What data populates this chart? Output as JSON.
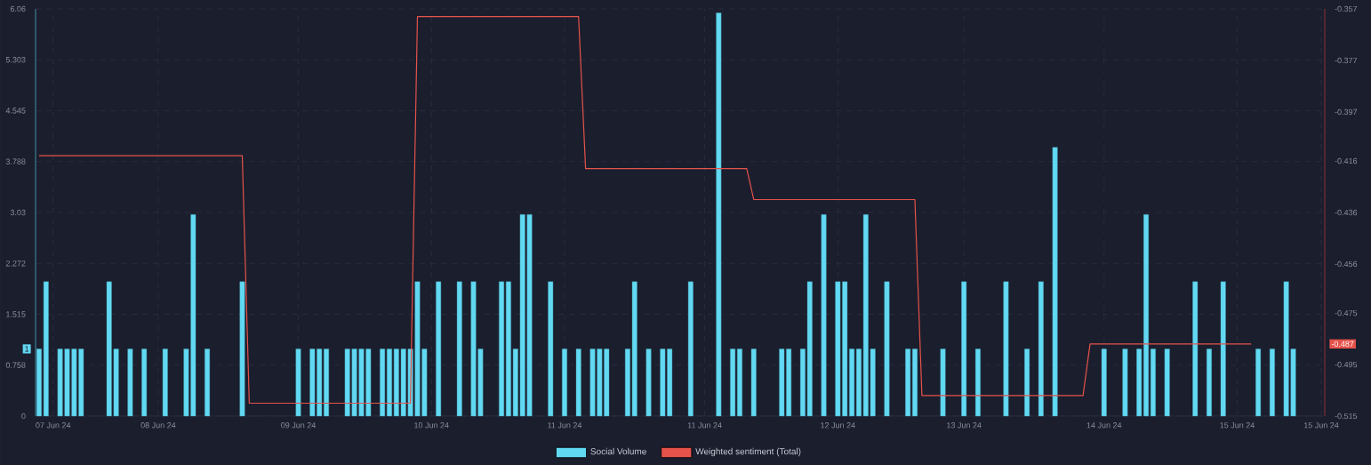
{
  "chart_data": {
    "type": "bar",
    "categories": [
      null,
      null,
      "07 Jun 24",
      null,
      null,
      null,
      null,
      null,
      null,
      null,
      null,
      null,
      null,
      null,
      null,
      null,
      null,
      "08 Jun 24",
      null,
      null,
      null,
      null,
      null,
      null,
      null,
      null,
      null,
      null,
      null,
      null,
      null,
      null,
      null,
      null,
      null,
      null,
      null,
      "09 Jun 24",
      null,
      null,
      null,
      null,
      null,
      null,
      null,
      null,
      null,
      null,
      null,
      null,
      null,
      null,
      null,
      null,
      null,
      null,
      "10 Jun 24",
      null,
      null,
      null,
      null,
      null,
      null,
      null,
      null,
      null,
      null,
      null,
      null,
      null,
      null,
      null,
      null,
      null,
      null,
      "11 Jun 24",
      null,
      null,
      null,
      null,
      null,
      null,
      null,
      null,
      null,
      null,
      null,
      null,
      null,
      null,
      null,
      null,
      null,
      null,
      null,
      "11 Jun 24",
      null,
      null,
      null,
      null,
      null,
      null,
      null,
      null,
      null,
      null,
      null,
      null,
      null,
      null,
      null,
      null,
      null,
      null,
      "12 Jun 24",
      null,
      null,
      null,
      null,
      null,
      null,
      null,
      null,
      null,
      null,
      null,
      null,
      null,
      null,
      null,
      null,
      null,
      "13 Jun 24",
      null,
      null,
      null,
      null,
      null,
      null,
      null,
      null,
      null,
      null,
      null,
      null,
      null,
      null,
      null,
      null,
      null,
      null,
      null,
      "14 Jun 24",
      null,
      null,
      null,
      null,
      null,
      null,
      null,
      null,
      null,
      null,
      null,
      null,
      null,
      null,
      null,
      null,
      null,
      null,
      "15 Jun 24",
      null,
      null,
      null,
      null,
      null,
      null,
      null,
      null,
      null,
      null,
      null,
      "15 Jun 24"
    ],
    "series": [
      {
        "name": "Social Volume",
        "color": "#62d9f3",
        "values": [
          1,
          2,
          null,
          1,
          1,
          1,
          1,
          null,
          null,
          null,
          2,
          1,
          null,
          1,
          null,
          1,
          null,
          null,
          1,
          null,
          null,
          1,
          3,
          null,
          1,
          null,
          null,
          null,
          null,
          2,
          null,
          null,
          null,
          null,
          null,
          null,
          null,
          1,
          null,
          1,
          1,
          1,
          null,
          null,
          1,
          1,
          1,
          1,
          null,
          1,
          1,
          1,
          1,
          1,
          2,
          1,
          null,
          2,
          null,
          null,
          2,
          null,
          2,
          1,
          null,
          null,
          2,
          2,
          1,
          3,
          3,
          null,
          null,
          2,
          null,
          1,
          null,
          1,
          null,
          1,
          1,
          1,
          null,
          null,
          1,
          2,
          null,
          1,
          null,
          1,
          1,
          null,
          null,
          2,
          null,
          null,
          null,
          6,
          null,
          1,
          1,
          null,
          1,
          null,
          null,
          null,
          1,
          1,
          null,
          1,
          2,
          null,
          3,
          null,
          2,
          2,
          1,
          1,
          3,
          1,
          null,
          2,
          null,
          null,
          1,
          1,
          null,
          null,
          null,
          1,
          null,
          null,
          2,
          null,
          1,
          null,
          null,
          null,
          2,
          null,
          null,
          1,
          null,
          2,
          null,
          4,
          null,
          null,
          null,
          null,
          null,
          null,
          1,
          null,
          null,
          1,
          null,
          1,
          3,
          1,
          null,
          1,
          null,
          null,
          null,
          2,
          null,
          1,
          null,
          2,
          null,
          null,
          null,
          null,
          1,
          null,
          1,
          null,
          2,
          1,
          null,
          null,
          null,
          null
        ]
      },
      {
        "name": "Weighted sentiment (Total)",
        "type": "line",
        "axis": "y2",
        "color": "#e5534b",
        "values": [
          -0.414,
          -0.414,
          -0.414,
          -0.414,
          -0.414,
          -0.414,
          -0.414,
          -0.414,
          -0.414,
          -0.414,
          -0.414,
          -0.414,
          -0.414,
          -0.414,
          -0.414,
          -0.414,
          -0.414,
          -0.414,
          -0.414,
          -0.414,
          -0.414,
          -0.414,
          -0.414,
          -0.414,
          -0.414,
          -0.414,
          -0.414,
          -0.414,
          -0.414,
          -0.414,
          -0.51,
          -0.51,
          -0.51,
          -0.51,
          -0.51,
          -0.51,
          -0.51,
          -0.51,
          -0.51,
          -0.51,
          -0.51,
          -0.51,
          -0.51,
          -0.51,
          -0.51,
          -0.51,
          -0.51,
          -0.51,
          -0.51,
          -0.51,
          -0.51,
          -0.51,
          -0.51,
          -0.51,
          -0.36,
          -0.36,
          -0.36,
          -0.36,
          -0.36,
          -0.36,
          -0.36,
          -0.36,
          -0.36,
          -0.36,
          -0.36,
          -0.36,
          -0.36,
          -0.36,
          -0.36,
          -0.36,
          -0.36,
          -0.36,
          -0.36,
          -0.36,
          -0.36,
          -0.36,
          -0.36,
          -0.36,
          -0.419,
          -0.419,
          -0.419,
          -0.419,
          -0.419,
          -0.419,
          -0.419,
          -0.419,
          -0.419,
          -0.419,
          -0.419,
          -0.419,
          -0.419,
          -0.419,
          -0.419,
          -0.419,
          -0.419,
          -0.419,
          -0.419,
          -0.419,
          -0.419,
          -0.419,
          -0.419,
          -0.419,
          -0.431,
          -0.431,
          -0.431,
          -0.431,
          -0.431,
          -0.431,
          -0.431,
          -0.431,
          -0.431,
          -0.431,
          -0.431,
          -0.431,
          -0.431,
          -0.431,
          -0.431,
          -0.431,
          -0.431,
          -0.431,
          -0.431,
          -0.431,
          -0.431,
          -0.431,
          -0.431,
          -0.431,
          -0.507,
          -0.507,
          -0.507,
          -0.507,
          -0.507,
          -0.507,
          -0.507,
          -0.507,
          -0.507,
          -0.507,
          -0.507,
          -0.507,
          -0.507,
          -0.507,
          -0.507,
          -0.507,
          -0.507,
          -0.507,
          -0.507,
          -0.507,
          -0.507,
          -0.507,
          -0.507,
          -0.507,
          -0.487,
          -0.487,
          -0.487,
          -0.487,
          -0.487,
          -0.487,
          -0.487,
          -0.487,
          -0.487,
          -0.487,
          -0.487,
          -0.487,
          -0.487,
          -0.487,
          -0.487,
          -0.487,
          -0.487,
          -0.487,
          -0.487,
          -0.487,
          -0.487,
          -0.487,
          -0.487,
          -0.487,
          null,
          null,
          null,
          null,
          null,
          null,
          null,
          null,
          null,
          null
        ]
      }
    ],
    "ylim": [
      0,
      6.06
    ],
    "yticks": [
      0,
      0.758,
      1.515,
      2.272,
      3.03,
      3.788,
      4.545,
      5.303,
      6.06
    ],
    "y2lim": [
      -0.515,
      -0.357
    ],
    "y2ticks": [
      -0.515,
      -0.495,
      -0.475,
      -0.456,
      -0.436,
      -0.416,
      -0.397,
      -0.377,
      -0.357
    ],
    "annotations": [
      "1",
      "-0.487"
    ],
    "grid": true,
    "legend": "bottom"
  }
}
